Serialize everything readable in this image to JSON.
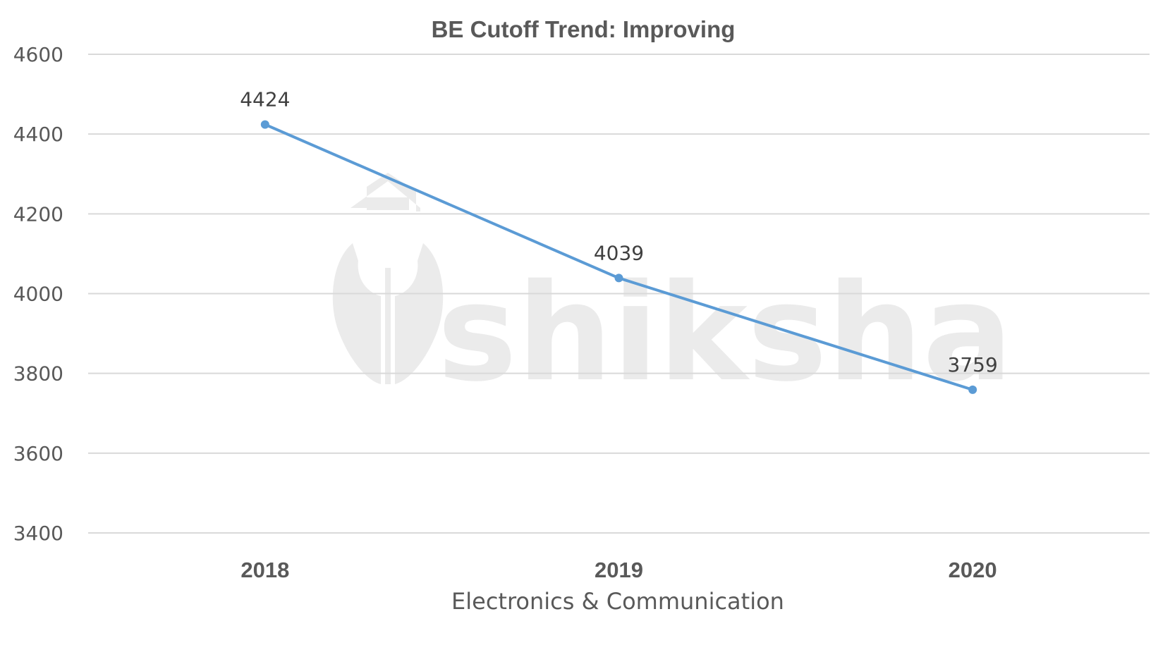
{
  "chart_data": {
    "type": "line",
    "title": "BE Cutoff Trend: Improving",
    "xlabel": "Electronics & Communication",
    "ylabel": "",
    "categories": [
      "2018",
      "2019",
      "2020"
    ],
    "series": [
      {
        "name": "Electronics & Communication",
        "values": [
          4424,
          4039,
          3759
        ],
        "color": "#5b9bd5"
      }
    ],
    "data_labels": [
      "4424",
      "4039",
      "3759"
    ],
    "ylim": [
      3400,
      4600
    ],
    "yticks": [
      4600,
      4400,
      4200,
      4000,
      3800,
      3600,
      3400
    ],
    "ytick_labels": [
      "4600",
      "4400",
      "4200",
      "4000",
      "3800",
      "3600",
      "3400"
    ],
    "grid": true,
    "legend": "none"
  },
  "watermark": {
    "text": "shiksha"
  },
  "colors": {
    "line": "#5b9bd5",
    "grid": "#d9d9d9",
    "text": "#595959",
    "watermark": "#ebebeb"
  }
}
